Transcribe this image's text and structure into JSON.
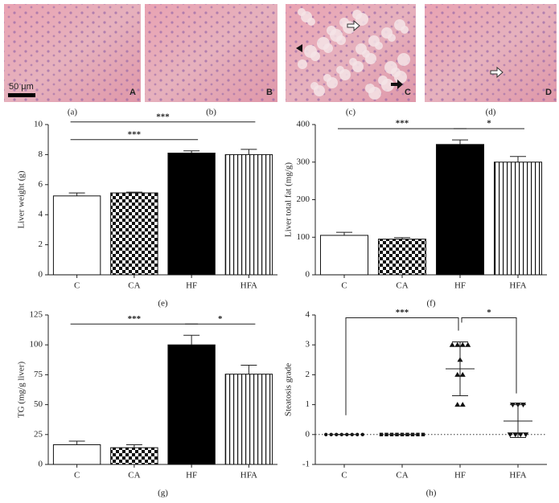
{
  "micrographs": [
    {
      "letter": "A",
      "caption": "(a)"
    },
    {
      "letter": "B",
      "caption": "(b)"
    },
    {
      "letter": "C",
      "caption": "(c)"
    },
    {
      "letter": "D",
      "caption": "(d)"
    }
  ],
  "scale_bar": "50 μm",
  "chart_data": [
    {
      "type": "bar",
      "caption": "(e)",
      "y_label": "Liver weight (g)",
      "categories": [
        "C",
        "CA",
        "HF",
        "HFA"
      ],
      "values": [
        5.25,
        5.45,
        8.1,
        8.0
      ],
      "errors": [
        0.2,
        0.05,
        0.15,
        0.35
      ],
      "fills": [
        "white",
        "checker",
        "black",
        "stripes"
      ],
      "ylim": [
        0,
        10
      ],
      "yticks": [
        0,
        2,
        4,
        6,
        8,
        10
      ],
      "annotations": [
        {
          "text": "***",
          "between": [
            0,
            3
          ]
        },
        {
          "text": "***",
          "between": [
            0,
            2
          ]
        }
      ]
    },
    {
      "type": "bar",
      "caption": "(f)",
      "y_label": "Liver total fat (mg/g)",
      "categories": [
        "C",
        "CA",
        "HF",
        "HFA"
      ],
      "values": [
        105,
        95,
        347,
        300
      ],
      "errors": [
        8,
        4,
        12,
        15
      ],
      "fills": [
        "white",
        "checker",
        "black",
        "stripes"
      ],
      "ylim": [
        0,
        400
      ],
      "yticks": [
        0,
        100,
        200,
        300,
        400
      ],
      "annotations": [
        {
          "text": "***",
          "between": [
            0,
            2
          ]
        },
        {
          "text": "*",
          "between": [
            2,
            3
          ]
        }
      ]
    },
    {
      "type": "bar",
      "caption": "(g)",
      "y_label": "TG (mg/g liver)",
      "categories": [
        "C",
        "CA",
        "HF",
        "HFA"
      ],
      "values": [
        16.5,
        14,
        100,
        75.5
      ],
      "errors": [
        3,
        2.5,
        8,
        7.5
      ],
      "fills": [
        "white",
        "checker",
        "black",
        "stripes"
      ],
      "ylim": [
        0,
        125
      ],
      "yticks": [
        0,
        25,
        50,
        75,
        100,
        125
      ],
      "annotations": [
        {
          "text": "***",
          "between": [
            0,
            2
          ]
        },
        {
          "text": "*",
          "between": [
            2,
            3
          ]
        }
      ]
    },
    {
      "type": "dot",
      "caption": "(h)",
      "y_label": "Steatosis grade",
      "categories": [
        "C",
        "CA",
        "HF",
        "HFA"
      ],
      "points": [
        [
          0,
          0,
          0,
          0,
          0,
          0,
          0,
          0
        ],
        [
          0,
          0,
          0,
          0,
          0,
          0,
          0,
          0,
          0
        ],
        [
          3,
          3,
          3,
          3,
          2.5,
          2,
          2,
          1,
          1
        ],
        [
          1,
          1,
          1,
          0,
          0,
          0,
          0
        ]
      ],
      "means": [
        0,
        0,
        2.2,
        0.45
      ],
      "sd": [
        0,
        0,
        0.9,
        0.55
      ],
      "markers": [
        "circle",
        "square",
        "triangle-up",
        "triangle-down"
      ],
      "zero_line": true,
      "ylim": [
        -1,
        4
      ],
      "yticks": [
        -1,
        0,
        1,
        2,
        3,
        4
      ],
      "annotations": [
        {
          "text": "***",
          "between": [
            0,
            2
          ]
        },
        {
          "text": "*",
          "between": [
            2,
            3
          ]
        }
      ]
    }
  ]
}
